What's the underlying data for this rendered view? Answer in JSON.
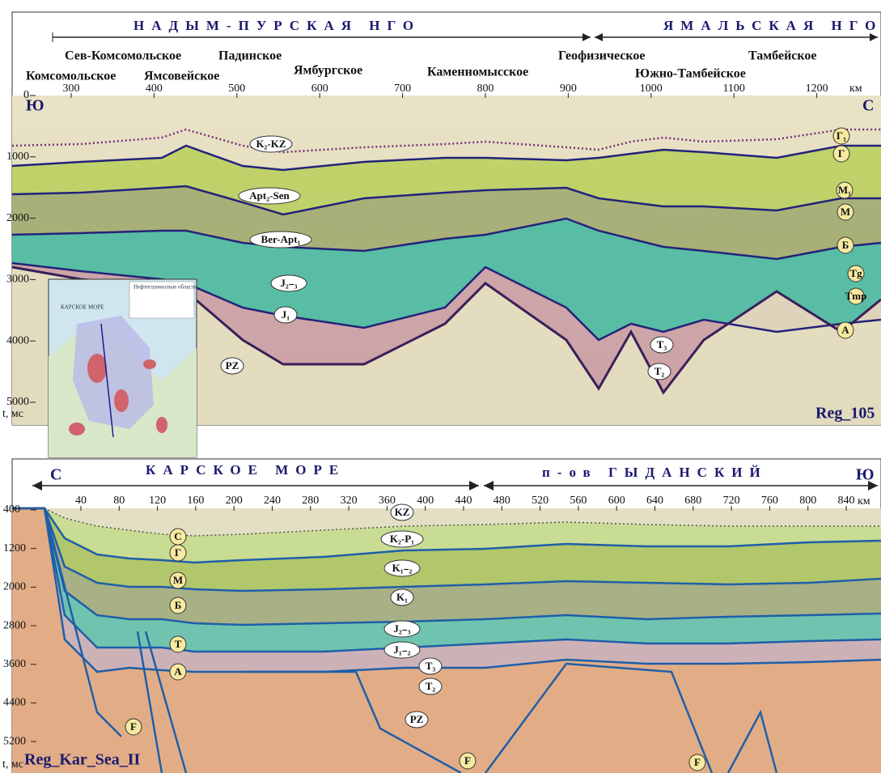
{
  "top_section": {
    "regions": [
      "НАДЫМ-ПУРСКАЯ НГО",
      "ЯМАЛЬСКАЯ НГО"
    ],
    "fields": [
      "Сев-Комсомольское",
      "Падинское",
      "Комсомольское",
      "Ямсовейское",
      "Ямбургское",
      "Каменномысское",
      "Геофизическое",
      "Южно-Тамбейское",
      "Тамбейское"
    ],
    "x_ticks": [
      300,
      400,
      500,
      600,
      700,
      800,
      900,
      1000,
      1100,
      1200
    ],
    "x_unit": "км",
    "y_ticks": [
      0,
      1000,
      2000,
      3000,
      4000,
      5000
    ],
    "y_unit": "t, мс",
    "direction_left": "Ю",
    "direction_right": "С",
    "horizons": [
      "K₂-KZ",
      "Apt₂-Sen",
      "Ber-Apt₁",
      "J₂₋₃",
      "J₁",
      "PZ",
      "T₃",
      "T₂",
      "Г₁",
      "Г",
      "М₁",
      "М",
      "Б",
      "Tg",
      "Tmp",
      "А"
    ],
    "profile": "Reg_105",
    "inset_map": {
      "sea": "КАРСКОЕ МОРЕ",
      "legend_title": "Нефтегазоносные области"
    }
  },
  "bottom_section": {
    "direction_left": "С",
    "regions": [
      "КАРСКОЕ МОРЕ",
      "п-ов ГЫДАНСКИЙ"
    ],
    "direction_right": "Ю",
    "x_ticks": [
      40,
      80,
      120,
      160,
      200,
      240,
      280,
      320,
      360,
      400,
      440,
      480,
      520,
      560,
      600,
      640,
      680,
      720,
      760,
      800,
      840
    ],
    "x_unit": "км",
    "y_ticks": [
      400,
      1200,
      2000,
      2800,
      3600,
      4400,
      5200
    ],
    "y_unit": "t, мс",
    "horizons": [
      "KZ",
      "K₂-P₁",
      "K₁₋₂",
      "K₁",
      "J₂₋₃",
      "J₁₋₂",
      "T₃",
      "T₂",
      "PZ",
      "С",
      "Г",
      "М",
      "Б",
      "Т",
      "А",
      "F",
      "F",
      "F"
    ],
    "profile": "Reg_Kar_Sea_II"
  }
}
